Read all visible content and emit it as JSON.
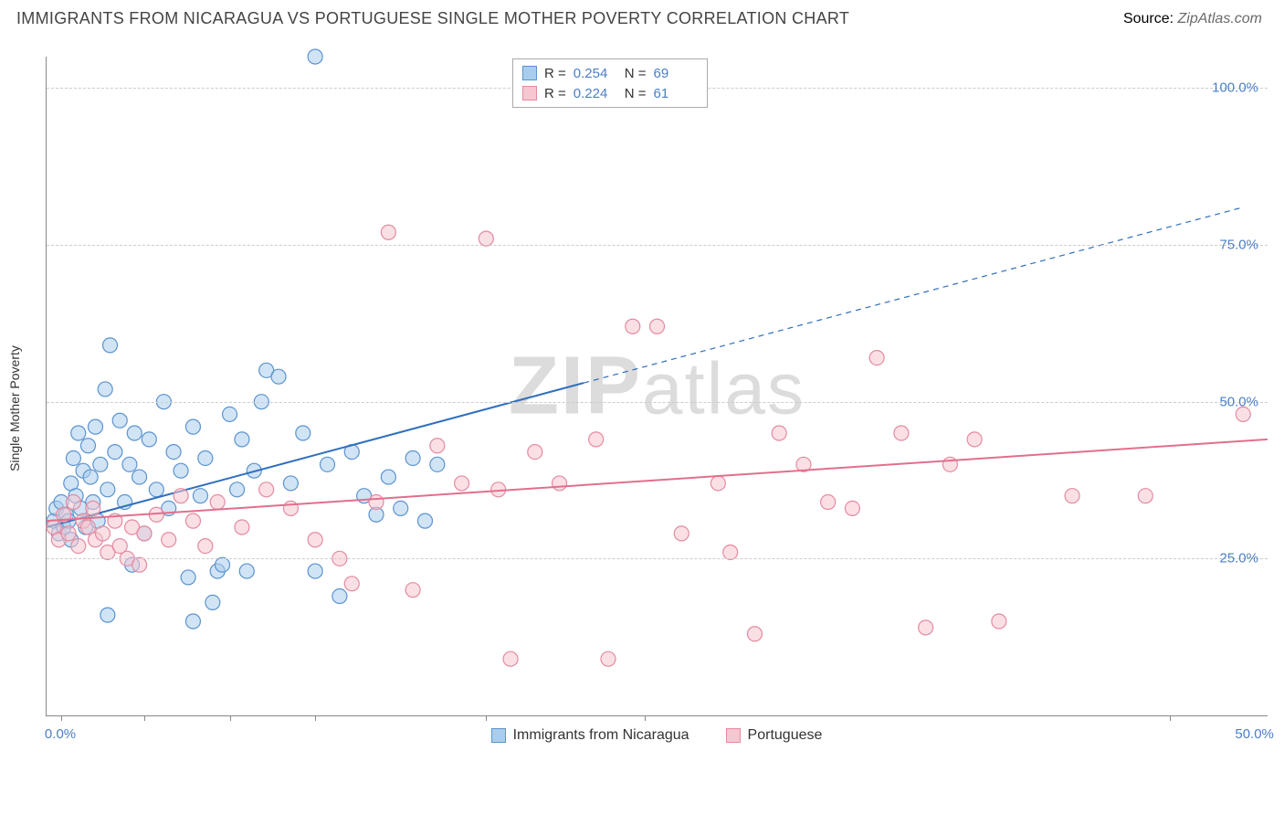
{
  "title": "IMMIGRANTS FROM NICARAGUA VS PORTUGUESE SINGLE MOTHER POVERTY CORRELATION CHART",
  "source_label": "Source:",
  "source_value": "ZipAtlas.com",
  "y_axis_label": "Single Mother Poverty",
  "watermark": "ZIPatlas",
  "chart": {
    "type": "scatter",
    "xlim": [
      0,
      50
    ],
    "ylim": [
      0,
      105
    ],
    "x_ticks_minor": [
      0.6,
      4.0,
      7.5,
      11.0,
      18.0,
      24.5,
      46.0
    ],
    "x_tick_labels": [
      {
        "pos": 0.6,
        "label": "0.0%"
      },
      {
        "pos": 49.5,
        "label": "50.0%"
      }
    ],
    "y_gridlines": [
      25,
      50,
      75,
      100
    ],
    "y_tick_labels": [
      {
        "pos": 25,
        "label": "25.0%"
      },
      {
        "pos": 50,
        "label": "50.0%"
      },
      {
        "pos": 75,
        "label": "75.0%"
      },
      {
        "pos": 100,
        "label": "100.0%"
      }
    ],
    "grid_color": "#d6d6d6",
    "axis_color": "#888888",
    "background_color": "#ffffff",
    "marker_radius": 8,
    "marker_opacity": 0.55,
    "series": [
      {
        "name": "Immigrants from Nicaragua",
        "color_fill": "#a9cdec",
        "color_stroke": "#5b93d0",
        "R": "0.254",
        "N": "69",
        "trend": {
          "x1": 0,
          "y1": 30,
          "x2_solid": 22,
          "y2_solid": 53,
          "x2_dash": 49,
          "y2_dash": 81,
          "color": "#2f6fbd",
          "width": 2
        },
        "points": [
          [
            0.3,
            31
          ],
          [
            0.4,
            33
          ],
          [
            0.5,
            29
          ],
          [
            0.6,
            34
          ],
          [
            0.7,
            30
          ],
          [
            0.8,
            32
          ],
          [
            0.9,
            31
          ],
          [
            1.0,
            37
          ],
          [
            1.0,
            28
          ],
          [
            1.1,
            41
          ],
          [
            1.2,
            35
          ],
          [
            1.3,
            45
          ],
          [
            1.4,
            33
          ],
          [
            1.5,
            39
          ],
          [
            1.6,
            30
          ],
          [
            1.7,
            43
          ],
          [
            1.8,
            38
          ],
          [
            1.9,
            34
          ],
          [
            2.0,
            46
          ],
          [
            2.1,
            31
          ],
          [
            2.2,
            40
          ],
          [
            2.4,
            52
          ],
          [
            2.5,
            36
          ],
          [
            2.6,
            59
          ],
          [
            2.5,
            16
          ],
          [
            2.8,
            42
          ],
          [
            3.0,
            47
          ],
          [
            3.2,
            34
          ],
          [
            3.4,
            40
          ],
          [
            3.5,
            24
          ],
          [
            3.6,
            45
          ],
          [
            3.8,
            38
          ],
          [
            4.0,
            29
          ],
          [
            4.2,
            44
          ],
          [
            4.5,
            36
          ],
          [
            4.8,
            50
          ],
          [
            5.0,
            33
          ],
          [
            5.2,
            42
          ],
          [
            5.5,
            39
          ],
          [
            5.8,
            22
          ],
          [
            6.0,
            46
          ],
          [
            6.0,
            15
          ],
          [
            6.3,
            35
          ],
          [
            6.5,
            41
          ],
          [
            6.8,
            18
          ],
          [
            7.0,
            23
          ],
          [
            7.2,
            24
          ],
          [
            7.5,
            48
          ],
          [
            7.8,
            36
          ],
          [
            8.0,
            44
          ],
          [
            8.2,
            23
          ],
          [
            8.5,
            39
          ],
          [
            8.8,
            50
          ],
          [
            9.0,
            55
          ],
          [
            9.5,
            54
          ],
          [
            10.0,
            37
          ],
          [
            10.5,
            45
          ],
          [
            11.0,
            105
          ],
          [
            11.0,
            23
          ],
          [
            11.5,
            40
          ],
          [
            12.0,
            19
          ],
          [
            12.5,
            42
          ],
          [
            13.0,
            35
          ],
          [
            13.5,
            32
          ],
          [
            14.0,
            38
          ],
          [
            14.5,
            33
          ],
          [
            15.0,
            41
          ],
          [
            15.5,
            31
          ],
          [
            16.0,
            40
          ]
        ]
      },
      {
        "name": "Portuguese",
        "color_fill": "#f5c7d0",
        "color_stroke": "#e58aa0",
        "R": "0.224",
        "N": "61",
        "trend": {
          "x1": 0,
          "y1": 31,
          "x2_solid": 50,
          "y2_solid": 44,
          "x2_dash": 50,
          "y2_dash": 44,
          "color": "#e16f8d",
          "width": 2
        },
        "points": [
          [
            0.3,
            30
          ],
          [
            0.5,
            28
          ],
          [
            0.7,
            32
          ],
          [
            0.9,
            29
          ],
          [
            1.1,
            34
          ],
          [
            1.3,
            27
          ],
          [
            1.5,
            31
          ],
          [
            1.7,
            30
          ],
          [
            1.9,
            33
          ],
          [
            2.0,
            28
          ],
          [
            2.3,
            29
          ],
          [
            2.5,
            26
          ],
          [
            2.8,
            31
          ],
          [
            3.0,
            27
          ],
          [
            3.3,
            25
          ],
          [
            3.5,
            30
          ],
          [
            3.8,
            24
          ],
          [
            4.0,
            29
          ],
          [
            4.5,
            32
          ],
          [
            5.0,
            28
          ],
          [
            5.5,
            35
          ],
          [
            6.0,
            31
          ],
          [
            6.5,
            27
          ],
          [
            7.0,
            34
          ],
          [
            8.0,
            30
          ],
          [
            9.0,
            36
          ],
          [
            10.0,
            33
          ],
          [
            11.0,
            28
          ],
          [
            12.0,
            25
          ],
          [
            12.5,
            21
          ],
          [
            13.5,
            34
          ],
          [
            14.0,
            77
          ],
          [
            15.0,
            20
          ],
          [
            16.0,
            43
          ],
          [
            17.0,
            37
          ],
          [
            18.0,
            76
          ],
          [
            18.5,
            36
          ],
          [
            19.0,
            9
          ],
          [
            20.0,
            42
          ],
          [
            21.0,
            37
          ],
          [
            22.5,
            44
          ],
          [
            23.0,
            9
          ],
          [
            24.0,
            62
          ],
          [
            25.0,
            62
          ],
          [
            26.0,
            29
          ],
          [
            27.5,
            37
          ],
          [
            28.0,
            26
          ],
          [
            29.0,
            13
          ],
          [
            30.0,
            45
          ],
          [
            31.0,
            40
          ],
          [
            32.0,
            34
          ],
          [
            33.0,
            33
          ],
          [
            34.0,
            57
          ],
          [
            35.0,
            45
          ],
          [
            36.0,
            14
          ],
          [
            37.0,
            40
          ],
          [
            38.0,
            44
          ],
          [
            39.0,
            15
          ],
          [
            42.0,
            35
          ],
          [
            45.0,
            35
          ],
          [
            49.0,
            48
          ]
        ]
      }
    ]
  },
  "legend_top": {
    "R_label": "R =",
    "N_label": "N ="
  },
  "legend_bottom": [
    {
      "label": "Immigrants from Nicaragua",
      "fill": "#a9cdec",
      "stroke": "#5b93d0"
    },
    {
      "label": "Portuguese",
      "fill": "#f5c7d0",
      "stroke": "#e58aa0"
    }
  ]
}
